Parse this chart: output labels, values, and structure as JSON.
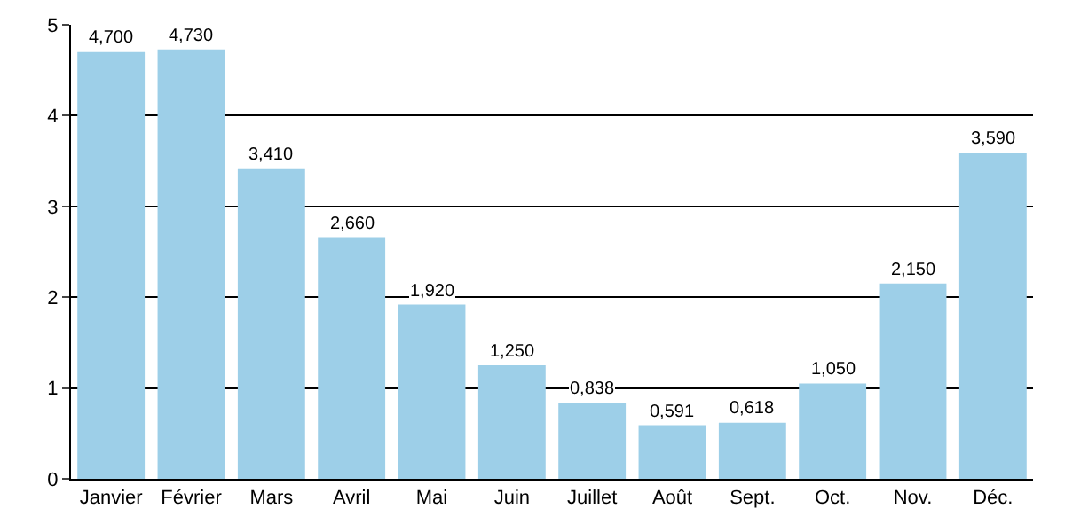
{
  "chart_data": {
    "type": "bar",
    "categories": [
      "Janvier",
      "Février",
      "Mars",
      "Avril",
      "Mai",
      "Juin",
      "Juillet",
      "Août",
      "Sept.",
      "Oct.",
      "Nov.",
      "Déc."
    ],
    "values": [
      4.7,
      4.73,
      3.41,
      2.66,
      1.92,
      1.25,
      0.838,
      0.591,
      0.618,
      1.05,
      2.15,
      3.59
    ],
    "value_labels": [
      "4,700",
      "4,730",
      "3,410",
      "2,660",
      "1,920",
      "1,250",
      "0,838",
      "0,591",
      "0,618",
      "1,050",
      "2,150",
      "3,590"
    ],
    "color": "#9dcfe8",
    "ylim": [
      0,
      5
    ],
    "yticks": [
      0,
      1,
      2,
      3,
      4,
      5
    ],
    "grid": "y"
  }
}
